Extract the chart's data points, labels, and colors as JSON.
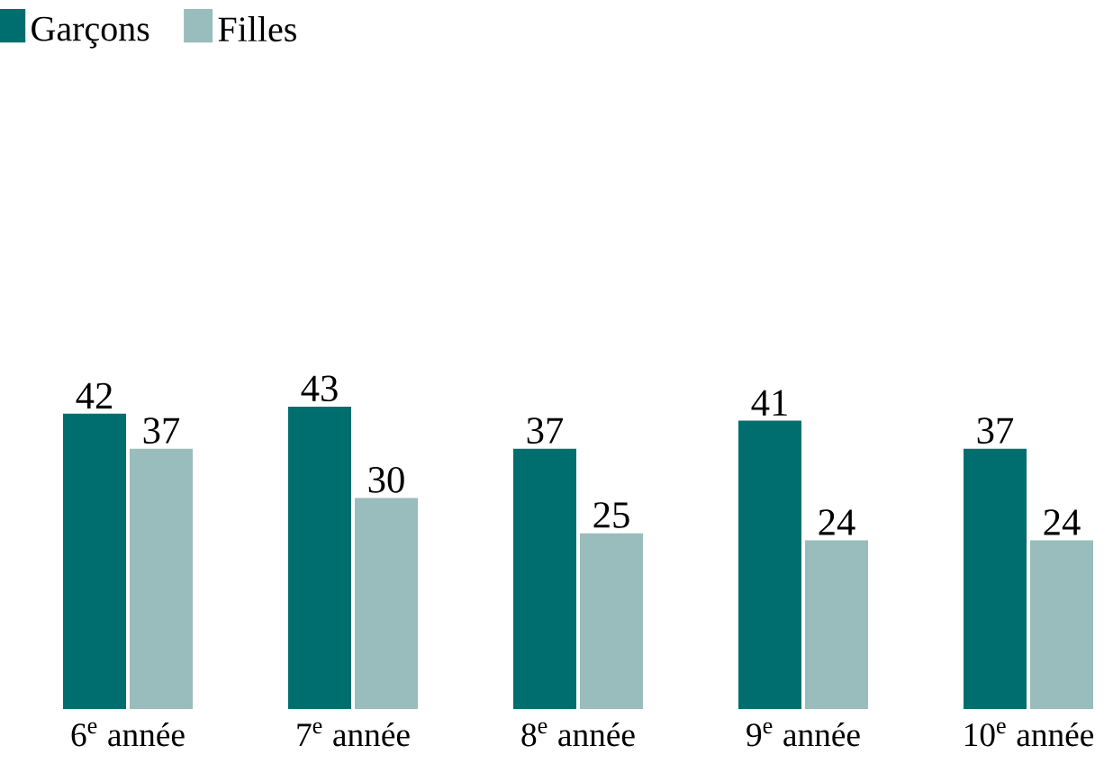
{
  "chart_data": {
    "type": "bar",
    "categories": [
      "6$^{e}$ année",
      "7$^{e}$ année",
      "8$^{e}$ année",
      "9$^{e}$ année",
      "10$^{e}$ année"
    ],
    "series": [
      {
        "name": "Garçons",
        "color": "#006e6e",
        "values": [
          42,
          43,
          37,
          41,
          37
        ]
      },
      {
        "name": "Filles",
        "color": "#99bcbc",
        "values": [
          37,
          30,
          25,
          24,
          24
        ]
      }
    ],
    "data_labels": true,
    "legend": "top left"
  }
}
